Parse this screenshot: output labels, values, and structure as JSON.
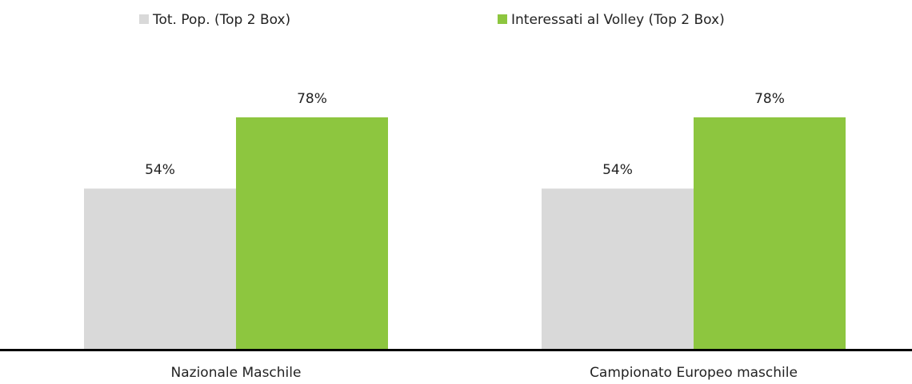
{
  "chart_data": {
    "type": "bar",
    "categories": [
      "Nazionale Maschile",
      "Campionato Europeo maschile"
    ],
    "series": [
      {
        "name": "Tot. Pop. (Top 2 Box)",
        "color": "#d9d9d9",
        "values": [
          54,
          54
        ],
        "value_labels": [
          "54%",
          "54%"
        ]
      },
      {
        "name": "Interessati al Volley (Top 2 Box)",
        "color": "#8dc63f",
        "values": [
          78,
          78
        ],
        "value_labels": [
          "78%",
          "78%"
        ]
      }
    ],
    "legend": "top"
  }
}
